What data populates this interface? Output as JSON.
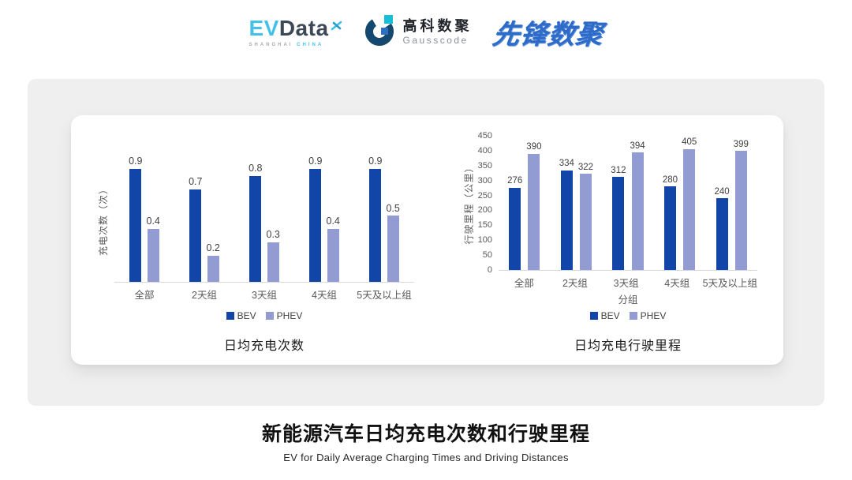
{
  "header": {
    "evdata": {
      "ev": "EV",
      "data": "Data",
      "sub_left": "SHANGHAI",
      "sub_right": "CHINA"
    },
    "gausscode": {
      "cn": "高科数聚",
      "en": "Gausscode"
    },
    "xianfeng": {
      "text": "先锋数聚"
    }
  },
  "footer": {
    "title": "新能源汽车日均充电次数和行驶里程",
    "subtitle": "EV for Daily Average Charging Times and Driving Distances"
  },
  "colors": {
    "bev": "#1245A8",
    "phev": "#929CD3",
    "axis_line": "#D9D9D9",
    "axis_text": "#595959"
  },
  "chart_data": [
    {
      "type": "bar",
      "title": "日均充电次数",
      "ylabel": "充电次数（次）",
      "xlabel": "",
      "categories": [
        "全部",
        "2天组",
        "3天组",
        "4天组",
        "5天及以上组"
      ],
      "series": [
        {
          "name": "BEV",
          "color": "#1245A8",
          "values": [
            0.9,
            0.7,
            0.8,
            0.9,
            0.9
          ]
        },
        {
          "name": "PHEV",
          "color": "#929CD3",
          "values": [
            0.4,
            0.2,
            0.3,
            0.4,
            0.5
          ]
        }
      ],
      "ylim": [
        0,
        0.95
      ],
      "yticks": [],
      "grid": false,
      "value_labels": true,
      "legend_position": "bottom"
    },
    {
      "type": "bar",
      "title": "日均充电行驶里程",
      "ylabel": "行驶里程（公里）",
      "xlabel": "分组",
      "categories": [
        "全部",
        "2天组",
        "3天组",
        "4天组",
        "5天及以上组"
      ],
      "series": [
        {
          "name": "BEV",
          "color": "#1245A8",
          "values": [
            276,
            334,
            312,
            280,
            240
          ]
        },
        {
          "name": "PHEV",
          "color": "#929CD3",
          "values": [
            390,
            322,
            394,
            405,
            399
          ]
        }
      ],
      "ylim": [
        0,
        450
      ],
      "yticks": [
        0,
        50,
        100,
        150,
        200,
        250,
        300,
        350,
        400,
        450
      ],
      "grid": false,
      "value_labels": true,
      "legend_position": "bottom"
    }
  ]
}
